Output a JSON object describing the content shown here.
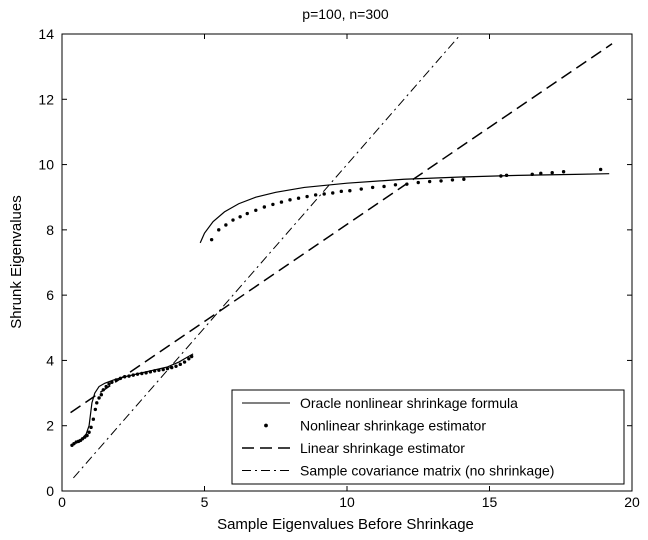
{
  "chart_data": {
    "type": "line",
    "title": "p=100, n=300",
    "xlabel": "Sample Eigenvalues Before Shrinkage",
    "ylabel": "Shrunk Eigenvalues",
    "xlim": [
      0,
      20
    ],
    "ylim": [
      0,
      14
    ],
    "xticks": [
      0,
      5,
      10,
      15,
      20
    ],
    "yticks": [
      0,
      2,
      4,
      6,
      8,
      10,
      12,
      14
    ],
    "grid": false,
    "legend_position": "bottom-right",
    "series": [
      {
        "name": "Oracle nonlinear shrinkage formula",
        "style": "solid",
        "segments": [
          [
            [
              0.4,
              1.45
            ],
            [
              0.55,
              1.5
            ],
            [
              0.7,
              1.6
            ],
            [
              0.85,
              1.75
            ],
            [
              0.95,
              2.0
            ],
            [
              1.05,
              2.7
            ],
            [
              1.15,
              3.0
            ],
            [
              1.3,
              3.2
            ],
            [
              1.5,
              3.3
            ],
            [
              1.8,
              3.4
            ],
            [
              2.2,
              3.5
            ],
            [
              2.7,
              3.6
            ],
            [
              3.2,
              3.7
            ],
            [
              3.7,
              3.8
            ],
            [
              4.1,
              3.95
            ],
            [
              4.4,
              4.1
            ],
            [
              4.6,
              4.2
            ]
          ],
          [
            [
              4.85,
              7.6
            ],
            [
              5.0,
              7.9
            ],
            [
              5.3,
              8.25
            ],
            [
              5.7,
              8.55
            ],
            [
              6.2,
              8.8
            ],
            [
              6.8,
              9.0
            ],
            [
              7.5,
              9.15
            ],
            [
              8.5,
              9.3
            ],
            [
              10.0,
              9.43
            ],
            [
              12.0,
              9.55
            ],
            [
              14.0,
              9.62
            ],
            [
              16.0,
              9.67
            ],
            [
              18.0,
              9.7
            ],
            [
              19.2,
              9.72
            ]
          ]
        ]
      },
      {
        "name": "Nonlinear shrinkage estimator",
        "style": "dots",
        "points": [
          [
            0.35,
            1.4
          ],
          [
            0.42,
            1.45
          ],
          [
            0.5,
            1.5
          ],
          [
            0.58,
            1.52
          ],
          [
            0.65,
            1.55
          ],
          [
            0.72,
            1.6
          ],
          [
            0.8,
            1.65
          ],
          [
            0.88,
            1.7
          ],
          [
            0.95,
            1.8
          ],
          [
            1.02,
            1.95
          ],
          [
            1.1,
            2.2
          ],
          [
            1.17,
            2.5
          ],
          [
            1.22,
            2.7
          ],
          [
            1.3,
            2.85
          ],
          [
            1.38,
            2.95
          ],
          [
            1.45,
            3.1
          ],
          [
            1.55,
            3.2
          ],
          [
            1.65,
            3.28
          ],
          [
            1.75,
            3.33
          ],
          [
            1.9,
            3.4
          ],
          [
            2.05,
            3.45
          ],
          [
            2.2,
            3.5
          ],
          [
            2.35,
            3.52
          ],
          [
            2.5,
            3.55
          ],
          [
            2.65,
            3.58
          ],
          [
            2.8,
            3.6
          ],
          [
            2.95,
            3.62
          ],
          [
            3.1,
            3.65
          ],
          [
            3.25,
            3.68
          ],
          [
            3.4,
            3.7
          ],
          [
            3.55,
            3.72
          ],
          [
            3.7,
            3.75
          ],
          [
            3.85,
            3.78
          ],
          [
            4.0,
            3.82
          ],
          [
            4.15,
            3.88
          ],
          [
            4.3,
            3.95
          ],
          [
            4.45,
            4.05
          ],
          [
            4.55,
            4.12
          ],
          [
            5.25,
            7.7
          ],
          [
            5.5,
            8.0
          ],
          [
            5.75,
            8.15
          ],
          [
            6.0,
            8.3
          ],
          [
            6.25,
            8.4
          ],
          [
            6.5,
            8.5
          ],
          [
            6.8,
            8.6
          ],
          [
            7.1,
            8.7
          ],
          [
            7.4,
            8.78
          ],
          [
            7.7,
            8.85
          ],
          [
            8.0,
            8.92
          ],
          [
            8.3,
            8.97
          ],
          [
            8.6,
            9.02
          ],
          [
            8.9,
            9.07
          ],
          [
            9.2,
            9.1
          ],
          [
            9.5,
            9.13
          ],
          [
            9.8,
            9.18
          ],
          [
            10.1,
            9.2
          ],
          [
            10.5,
            9.25
          ],
          [
            10.9,
            9.3
          ],
          [
            11.3,
            9.33
          ],
          [
            11.7,
            9.38
          ],
          [
            12.1,
            9.4
          ],
          [
            12.5,
            9.45
          ],
          [
            12.9,
            9.48
          ],
          [
            13.3,
            9.5
          ],
          [
            13.7,
            9.53
          ],
          [
            14.1,
            9.55
          ],
          [
            15.4,
            9.65
          ],
          [
            15.6,
            9.67
          ],
          [
            16.5,
            9.7
          ],
          [
            16.8,
            9.73
          ],
          [
            17.2,
            9.75
          ],
          [
            17.6,
            9.78
          ],
          [
            18.9,
            9.85
          ]
        ]
      },
      {
        "name": "Linear shrinkage estimator",
        "style": "dashed",
        "points": [
          [
            0.3,
            2.4
          ],
          [
            19.3,
            13.7
          ]
        ]
      },
      {
        "name": "Sample covariance matrix (no shrinkage)",
        "style": "dashdot",
        "points": [
          [
            0.4,
            0.4
          ],
          [
            14,
            14
          ]
        ]
      }
    ]
  }
}
